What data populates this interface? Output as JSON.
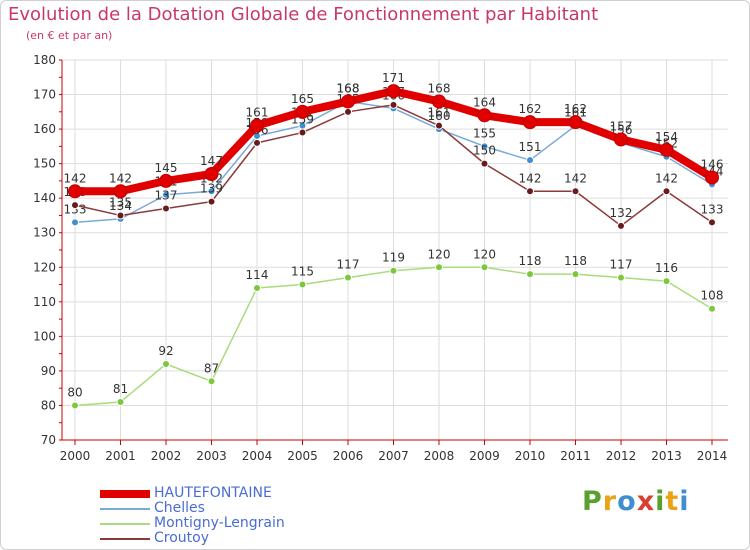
{
  "header": {
    "title": "Evolution de la Dotation Globale de Fonctionnement par Habitant",
    "subtitle": "(en € et par an)"
  },
  "logo": {
    "letters": [
      "P",
      "r",
      "o",
      "x",
      "i",
      "t",
      "i"
    ],
    "colors": [
      "#5aa02c",
      "#e8a317",
      "#3f8fd0",
      "#d9412e",
      "#5aa02c",
      "#e8a317",
      "#3f8fd0"
    ]
  },
  "colors": {
    "axis": "#cc0000",
    "grid": "#dddddd",
    "tick_text": "#333333",
    "value_text": "#333333"
  },
  "chart_data": {
    "type": "line",
    "title": "Evolution de la Dotation Globale de Fonctionnement par Habitant",
    "subtitle": "(en € et par an)",
    "xlabel": "",
    "ylabel": "",
    "x": [
      2000,
      2001,
      2002,
      2003,
      2004,
      2005,
      2006,
      2007,
      2008,
      2009,
      2010,
      2011,
      2012,
      2013,
      2014
    ],
    "ylim": [
      70,
      180
    ],
    "yticks": [
      70,
      80,
      90,
      100,
      110,
      120,
      130,
      140,
      150,
      160,
      170,
      180
    ],
    "grid": true,
    "legend_position": "bottom-left",
    "series": [
      {
        "name": "HAUTEFONTAINE",
        "color": "#e00000",
        "marker_color": "#e00000",
        "emphasis": true,
        "values": [
          142,
          142,
          145,
          147,
          161,
          165,
          168,
          171,
          168,
          164,
          162,
          162,
          157,
          154,
          146
        ]
      },
      {
        "name": "Chelles",
        "color": "#7aaad8",
        "marker_color": "#3f8fd0",
        "values": [
          133,
          134,
          141,
          142,
          158,
          161,
          168,
          166,
          160,
          155,
          151,
          161,
          156,
          152,
          144
        ]
      },
      {
        "name": "Montigny-Lengrain",
        "color": "#a8dc7c",
        "marker_color": "#7cc83c",
        "values": [
          80,
          81,
          92,
          87,
          114,
          115,
          117,
          119,
          120,
          120,
          118,
          118,
          117,
          116,
          108
        ]
      },
      {
        "name": "Croutoy",
        "color": "#8a3a3a",
        "marker_color": "#6a1a1a",
        "values": [
          138,
          135,
          137,
          139,
          156,
          159,
          165,
          167,
          161,
          150,
          142,
          142,
          132,
          142,
          133
        ]
      }
    ]
  }
}
